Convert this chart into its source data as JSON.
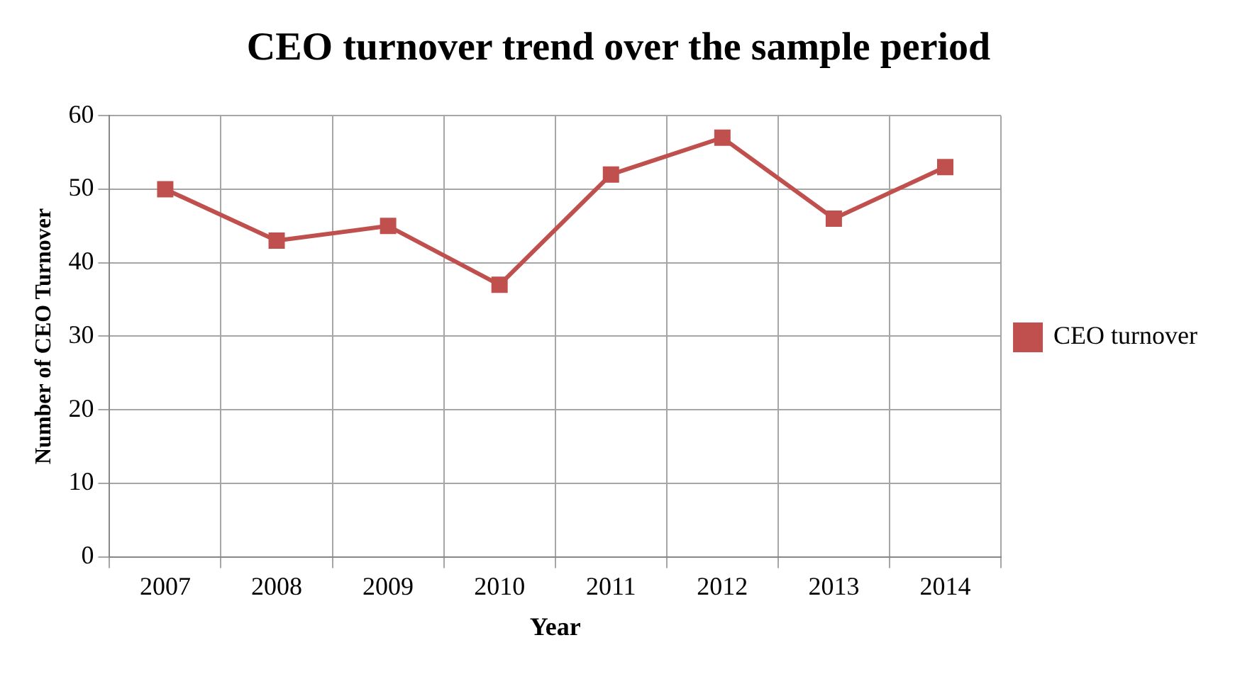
{
  "chart_data": {
    "type": "line",
    "title": "CEO turnover trend over the sample period",
    "xlabel": "Year",
    "ylabel": "Number of CEO Turnover",
    "categories": [
      "2007",
      "2008",
      "2009",
      "2010",
      "2011",
      "2012",
      "2013",
      "2014"
    ],
    "series": [
      {
        "name": "CEO turnover",
        "color": "#c0504d",
        "values": [
          50,
          43,
          45,
          37,
          52,
          57,
          46,
          53
        ]
      }
    ],
    "ylim": [
      0,
      60
    ],
    "yticks": [
      0,
      10,
      20,
      30,
      40,
      50,
      60
    ],
    "grid": true,
    "legend": "right",
    "marker": "square",
    "line_style": "solid"
  }
}
